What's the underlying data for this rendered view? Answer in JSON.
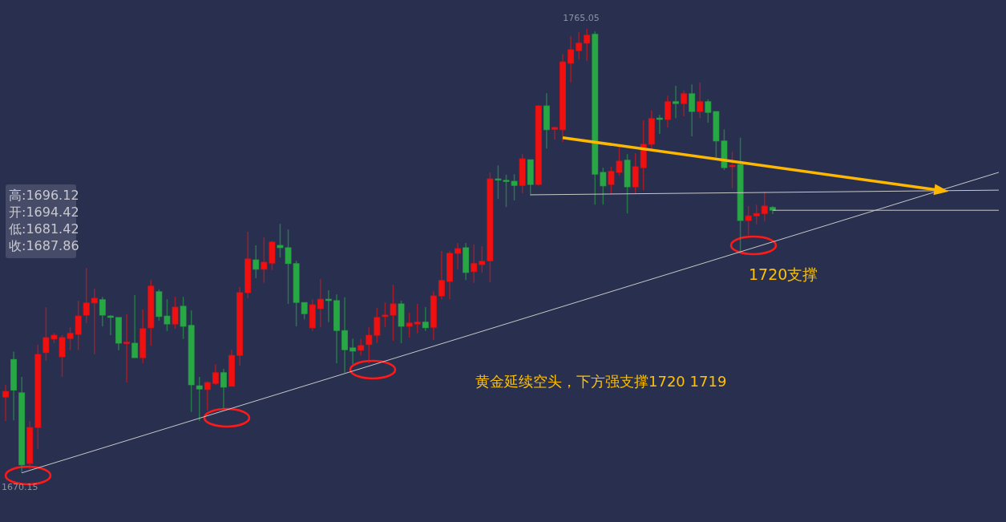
{
  "chart_data": {
    "type": "candlestick",
    "categories": [
      null,
      null,
      null,
      null,
      null,
      null,
      null,
      null,
      null,
      null,
      null,
      null,
      null,
      null,
      null,
      null,
      null,
      null,
      null,
      null,
      null,
      null,
      null,
      null,
      null,
      null,
      null,
      null,
      null,
      null,
      null,
      null,
      null,
      null,
      null,
      null,
      null,
      null,
      null,
      null,
      null,
      null,
      null,
      null,
      null,
      null,
      null,
      null,
      null,
      null,
      null,
      null,
      null,
      null,
      null,
      null,
      null,
      null,
      null,
      null,
      null,
      null,
      null,
      null,
      null,
      null,
      null,
      null,
      null,
      null,
      null,
      null,
      null,
      null,
      null,
      null,
      null,
      null,
      null,
      null,
      null,
      null,
      null,
      null,
      null,
      null,
      null,
      null,
      null,
      null,
      null,
      null,
      null,
      null,
      null,
      null,
      null,
      null,
      null,
      null,
      null,
      null,
      null,
      null,
      null,
      null,
      null,
      null,
      null,
      null,
      null,
      null,
      null,
      null,
      null,
      null,
      null,
      null,
      null,
      null,
      null,
      null,
      null,
      null
    ],
    "ohlc": [
      [
        1686.4,
        1689.0,
        1681.3,
        1687.6
      ],
      [
        1694.42,
        1696.12,
        1681.42,
        1687.86
      ],
      [
        1687.3,
        1690.7,
        1670.15,
        1671.9
      ],
      [
        1672.2,
        1681.3,
        1671.0,
        1679.9
      ],
      [
        1679.9,
        1697.6,
        1675.3,
        1695.5
      ],
      [
        1695.9,
        1705.6,
        1694.1,
        1699.1
      ],
      [
        1698.8,
        1700.1,
        1697.9,
        1699.6
      ],
      [
        1695.0,
        1699.6,
        1690.7,
        1699.1
      ],
      [
        1698.9,
        1701.3,
        1696.4,
        1700.0
      ],
      [
        1699.8,
        1707.0,
        1696.4,
        1703.7
      ],
      [
        1703.9,
        1714.0,
        1702.2,
        1706.5
      ],
      [
        1706.5,
        1709.6,
        1695.5,
        1707.5
      ],
      [
        1707.2,
        1707.8,
        1701.5,
        1703.9
      ],
      [
        1703.7,
        1703.9,
        1699.6,
        1703.4
      ],
      [
        1703.4,
        1703.4,
        1696.4,
        1697.9
      ],
      [
        1697.9,
        1704.1,
        1689.5,
        1698.1
      ],
      [
        1697.9,
        1708.2,
        1694.8,
        1694.8
      ],
      [
        1694.8,
        1705.1,
        1693.6,
        1701.0
      ],
      [
        1701.2,
        1711.4,
        1697.4,
        1710.1
      ],
      [
        1708.9,
        1709.4,
        1702.7,
        1703.6
      ],
      [
        1703.7,
        1707.3,
        1700.5,
        1702.0
      ],
      [
        1702.0,
        1707.8,
        1701.0,
        1705.6
      ],
      [
        1705.8,
        1707.8,
        1698.8,
        1701.5
      ],
      [
        1701.7,
        1704.9,
        1683.2,
        1689.0
      ],
      [
        1688.8,
        1690.7,
        1681.3,
        1688.1
      ],
      [
        1688.0,
        1689.7,
        1683.5,
        1689.5
      ],
      [
        1689.3,
        1693.4,
        1689.0,
        1691.6
      ],
      [
        1691.6,
        1692.4,
        1683.9,
        1688.5
      ],
      [
        1688.7,
        1696.5,
        1688.7,
        1695.3
      ],
      [
        1695.3,
        1709.9,
        1693.1,
        1708.7
      ],
      [
        1708.7,
        1721.7,
        1707.5,
        1715.9
      ],
      [
        1715.7,
        1718.8,
        1711.8,
        1713.7
      ],
      [
        1713.7,
        1720.5,
        1710.8,
        1715.2
      ],
      [
        1715.0,
        1719.8,
        1713.5,
        1719.5
      ],
      [
        1718.8,
        1723.4,
        1716.2,
        1718.3
      ],
      [
        1718.3,
        1722.2,
        1706.3,
        1714.9
      ],
      [
        1714.9,
        1715.5,
        1701.5,
        1706.6
      ],
      [
        1706.6,
        1706.6,
        1703.0,
        1704.2
      ],
      [
        1701.2,
        1707.3,
        1700.5,
        1706.1
      ],
      [
        1705.3,
        1711.6,
        1701.3,
        1707.3
      ],
      [
        1707.3,
        1709.2,
        1702.4,
        1707.0
      ],
      [
        1707.0,
        1708.3,
        1693.6,
        1700.6
      ],
      [
        1700.6,
        1707.7,
        1691.6,
        1696.5
      ],
      [
        1696.9,
        1698.9,
        1693.4,
        1696.2
      ],
      [
        1696.4,
        1698.8,
        1695.3,
        1697.4
      ],
      [
        1697.6,
        1701.3,
        1693.6,
        1699.6
      ],
      [
        1699.6,
        1705.4,
        1697.9,
        1703.4
      ],
      [
        1703.6,
        1706.6,
        1701.3,
        1703.9
      ],
      [
        1703.9,
        1710.4,
        1698.4,
        1706.3
      ],
      [
        1706.3,
        1707.0,
        1697.9,
        1701.5
      ],
      [
        1701.5,
        1704.4,
        1699.1,
        1702.2
      ],
      [
        1702.0,
        1706.3,
        1700.0,
        1702.4
      ],
      [
        1702.4,
        1705.6,
        1700.5,
        1701.2
      ],
      [
        1701.3,
        1709.0,
        1698.6,
        1708.0
      ],
      [
        1708.0,
        1717.6,
        1707.3,
        1711.3
      ],
      [
        1711.1,
        1717.6,
        1707.3,
        1717.1
      ],
      [
        1717.1,
        1719.3,
        1713.7,
        1718.1
      ],
      [
        1718.3,
        1719.3,
        1711.4,
        1713.0
      ],
      [
        1713.2,
        1719.0,
        1710.8,
        1714.9
      ],
      [
        1714.7,
        1718.6,
        1713.0,
        1715.4
      ],
      [
        1715.5,
        1734.4,
        1710.9,
        1733.0
      ],
      [
        1733.0,
        1735.9,
        1728.7,
        1732.9
      ],
      [
        1732.7,
        1733.9,
        1727.0,
        1732.5
      ],
      [
        1732.5,
        1734.0,
        1728.4,
        1731.6
      ],
      [
        1731.6,
        1738.3,
        1729.9,
        1737.3
      ],
      [
        1737.1,
        1737.1,
        1729.4,
        1731.8
      ],
      [
        1731.8,
        1748.8,
        1731.6,
        1748.6
      ],
      [
        1748.6,
        1751.3,
        1739.5,
        1743.5
      ],
      [
        1743.6,
        1744.0,
        1741.4,
        1744.0
      ],
      [
        1743.5,
        1759.7,
        1740.9,
        1758.0
      ],
      [
        1757.7,
        1763.5,
        1753.6,
        1760.6
      ],
      [
        1760.4,
        1764.4,
        1758.5,
        1762.0
      ],
      [
        1762.0,
        1765.05,
        1758.2,
        1763.7
      ],
      [
        1763.9,
        1764.5,
        1727.5,
        1734.0
      ],
      [
        1734.4,
        1735.4,
        1727.5,
        1731.5
      ],
      [
        1731.8,
        1735.6,
        1729.8,
        1734.6
      ],
      [
        1734.4,
        1739.9,
        1733.7,
        1736.8
      ],
      [
        1737.0,
        1738.3,
        1725.6,
        1731.3
      ],
      [
        1731.3,
        1738.5,
        1729.8,
        1735.6
      ],
      [
        1735.4,
        1745.5,
        1730.6,
        1740.4
      ],
      [
        1740.4,
        1747.6,
        1739.2,
        1745.9
      ],
      [
        1746.0,
        1746.7,
        1742.6,
        1745.7
      ],
      [
        1745.7,
        1750.8,
        1744.0,
        1749.5
      ],
      [
        1749.5,
        1752.9,
        1746.0,
        1749.1
      ],
      [
        1749.1,
        1751.9,
        1746.4,
        1751.2
      ],
      [
        1751.2,
        1753.2,
        1742.1,
        1747.4
      ],
      [
        1747.4,
        1753.6,
        1746.0,
        1749.5
      ],
      [
        1749.5,
        1750.0,
        1745.0,
        1747.2
      ],
      [
        1747.4,
        1747.4,
        1737.6,
        1741.1
      ],
      [
        1741.1,
        1743.6,
        1734.9,
        1735.4
      ],
      [
        1735.6,
        1738.8,
        1731.0,
        1735.9
      ],
      [
        1736.1,
        1741.8,
        1717.3,
        1724.1
      ],
      [
        1724.1,
        1727.2,
        1721.0,
        1725.1
      ],
      [
        1725.1,
        1727.5,
        1723.3,
        1725.6
      ],
      [
        1725.6,
        1730.3,
        1723.9,
        1727.2
      ],
      [
        1726.9,
        1727.2,
        1725.5,
        1726.3
      ],
      null,
      null,
      null,
      null,
      null,
      null,
      null,
      null,
      null,
      null,
      null,
      null,
      null,
      null,
      null,
      null,
      null,
      null,
      null,
      null,
      null,
      null,
      null,
      null,
      null,
      null,
      null,
      null
    ],
    "colors": [
      "#f01010",
      "#28a745",
      "#28a745",
      "#f01010",
      "#f01010",
      "#f01010",
      "#f01010",
      "#f01010",
      "#f01010",
      "#f01010",
      "#f01010",
      "#f01010",
      "#28a745",
      "#28a745",
      "#28a745",
      "#f01010",
      "#28a745",
      "#f01010",
      "#f01010",
      "#28a745",
      "#28a745",
      "#f01010",
      "#28a745",
      "#28a745",
      "#28a745",
      "#f01010",
      "#f01010",
      "#28a745",
      "#f01010",
      "#f01010",
      "#f01010",
      "#28a745",
      "#f01010",
      "#f01010",
      "#28a745",
      "#28a745",
      "#28a745",
      "#28a745",
      "#f01010",
      "#f01010",
      "#28a745",
      "#28a745",
      "#28a745",
      "#28a745",
      "#f01010",
      "#f01010",
      "#f01010",
      "#f01010",
      "#f01010",
      "#28a745",
      "#f01010",
      "#f01010",
      "#28a745",
      "#f01010",
      "#f01010",
      "#f01010",
      "#f01010",
      "#28a745",
      "#f01010",
      "#f01010",
      "#f01010",
      "#28a745",
      "#28a745",
      "#28a745",
      "#f01010",
      "#28a745",
      "#f01010",
      "#28a745",
      "#f01010",
      "#f01010",
      "#f01010",
      "#f01010",
      "#f01010",
      "#28a745",
      "#28a745",
      "#f01010",
      "#f01010",
      "#28a745",
      "#f01010",
      "#f01010",
      "#f01010",
      "#28a745",
      "#f01010",
      "#28a745",
      "#f01010",
      "#28a745",
      "#f01010",
      "#28a745",
      "#28a745",
      "#28a745",
      "#f01010",
      "#28a745",
      "#f01010",
      "#f01010",
      "#f01010",
      "#28a745",
      null,
      null,
      null,
      null,
      null,
      null,
      null,
      null,
      null,
      null,
      null,
      null,
      null,
      null,
      null,
      null,
      null,
      null,
      null,
      null,
      null,
      null,
      null,
      null,
      null,
      null,
      null,
      null
    ],
    "series": [
      {
        "type": "line",
        "color": "#c8c8c8",
        "values": [
          null,
          null,
          1670.2,
          null,
          null,
          null,
          null,
          null,
          null,
          null,
          null,
          null,
          null,
          null,
          null,
          null,
          null,
          null,
          null,
          null,
          null,
          null,
          null,
          null,
          null,
          null,
          null,
          null,
          null,
          null,
          null,
          null,
          null,
          null,
          null,
          null,
          null,
          null,
          null,
          null,
          null,
          null,
          null,
          null,
          null,
          null,
          null,
          null,
          null,
          null,
          null,
          null,
          null,
          null,
          null,
          null,
          null,
          null,
          null,
          null,
          null,
          null,
          null,
          null,
          null,
          null,
          null,
          null,
          null,
          null,
          null,
          null,
          null,
          null,
          null,
          null,
          null,
          null,
          null,
          null,
          null,
          null,
          null,
          null,
          null,
          null,
          null,
          null,
          null,
          null,
          null,
          null,
          null,
          null,
          null,
          null,
          null,
          null,
          null,
          null,
          null,
          null,
          null,
          null,
          null,
          null,
          null,
          null,
          null,
          null,
          null,
          null,
          null,
          null,
          null,
          null,
          null,
          null,
          null,
          null,
          null,
          null,
          null,
          1734.4
        ]
      },
      {
        "type": "line",
        "color": "#c8c8c8",
        "values": [
          null,
          null,
          null,
          null,
          null,
          null,
          null,
          null,
          null,
          null,
          null,
          null,
          null,
          null,
          null,
          null,
          null,
          null,
          null,
          null,
          null,
          null,
          null,
          null,
          null,
          null,
          null,
          null,
          null,
          null,
          null,
          null,
          null,
          null,
          null,
          null,
          null,
          null,
          null,
          null,
          null,
          null,
          null,
          null,
          null,
          null,
          null,
          null,
          null,
          null,
          null,
          null,
          null,
          null,
          null,
          null,
          null,
          null,
          null,
          null,
          null,
          null,
          null,
          null,
          null,
          1729.6,
          null,
          null,
          null,
          null,
          null,
          null,
          null,
          null,
          null,
          null,
          null,
          null,
          null,
          null,
          null,
          null,
          null,
          null,
          null,
          null,
          null,
          null,
          null,
          null,
          null,
          null,
          null,
          null,
          null,
          null,
          null,
          null,
          null,
          null,
          null,
          null,
          null,
          null,
          null,
          null,
          null,
          null,
          null,
          null,
          null,
          null,
          null,
          null,
          null,
          null,
          null,
          null,
          null,
          null,
          null,
          null,
          null,
          1730.6
        ]
      },
      {
        "type": "line",
        "color": "#c8c8c8",
        "values": [
          null,
          null,
          null,
          null,
          null,
          null,
          null,
          null,
          null,
          null,
          null,
          null,
          null,
          null,
          null,
          null,
          null,
          null,
          null,
          null,
          null,
          null,
          null,
          null,
          null,
          null,
          null,
          null,
          null,
          null,
          null,
          null,
          null,
          null,
          null,
          null,
          null,
          null,
          null,
          null,
          null,
          null,
          null,
          null,
          null,
          null,
          null,
          null,
          null,
          null,
          null,
          null,
          null,
          null,
          null,
          null,
          null,
          null,
          null,
          null,
          null,
          null,
          null,
          null,
          null,
          null,
          null,
          null,
          null,
          null,
          null,
          null,
          null,
          null,
          null,
          null,
          null,
          null,
          null,
          null,
          null,
          null,
          null,
          null,
          null,
          null,
          null,
          null,
          null,
          null,
          null,
          null,
          null,
          null,
          null,
          1726.3,
          null,
          null,
          null,
          null,
          null,
          null,
          null,
          null,
          null,
          null,
          null,
          null,
          null,
          null,
          null,
          null,
          null,
          null,
          null,
          null,
          null,
          null,
          null,
          null,
          null,
          null,
          null,
          1726.3
        ]
      },
      {
        "type": "line",
        "color": "#ffb800",
        "marker": "triangle",
        "values": [
          null,
          null,
          null,
          null,
          null,
          null,
          null,
          null,
          null,
          null,
          null,
          null,
          null,
          null,
          null,
          null,
          null,
          null,
          null,
          null,
          null,
          null,
          null,
          null,
          null,
          null,
          null,
          null,
          null,
          null,
          null,
          null,
          null,
          null,
          null,
          null,
          null,
          null,
          null,
          null,
          null,
          null,
          null,
          null,
          null,
          null,
          null,
          null,
          null,
          null,
          null,
          null,
          null,
          null,
          null,
          null,
          null,
          null,
          null,
          null,
          null,
          null,
          null,
          null,
          null,
          null,
          null,
          null,
          null,
          1741.8,
          null,
          null,
          null,
          null,
          null,
          null,
          null,
          null,
          null,
          null,
          null,
          null,
          null,
          null,
          null,
          null,
          null,
          null,
          null,
          null,
          null,
          null,
          null,
          null,
          null,
          null,
          null,
          null,
          null,
          null,
          null,
          null,
          null,
          null,
          null,
          null,
          null,
          null,
          null,
          null,
          null,
          null,
          null,
          null,
          null,
          null,
          1730.5,
          null,
          null,
          null,
          null,
          null,
          null,
          null
        ]
      }
    ],
    "annotations": [
      {
        "text": "1765.05",
        "y": 1765.05
      },
      {
        "text": "1670.15",
        "y": 1670.15
      },
      "1720支撑",
      "黄金延续空头，下方强支撑1720 1719",
      "高:1696.12",
      "开:1694.42",
      "低:1681.42",
      "收:1687.86"
    ]
  }
}
